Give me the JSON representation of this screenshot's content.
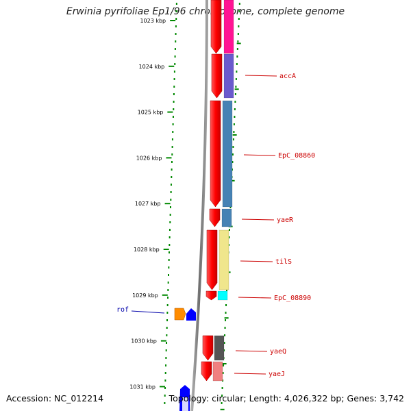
{
  "title": "Erwinia pyrifoliae Ep1/96 chromosome, complete genome",
  "footer": {
    "accession": "Accession: NC_012214",
    "topology": "Topology: circular; Length: 4,026,322 bp; Genes: 3,742"
  },
  "map": {
    "scale_unit": "kbp",
    "scale_ticks": [
      1023,
      1024,
      1025,
      1026,
      1027,
      1028,
      1029,
      1030,
      1031
    ],
    "gene_labels": [
      "accA",
      "EpC_08860",
      "yaeR",
      "tilS",
      "EpC_08890",
      "yaeQ",
      "yaeJ",
      "rof"
    ],
    "colors": {
      "backbone": "#888888",
      "cds_strand": "#ff0000",
      "reverse_strand": "#0000ff",
      "tick": "#008800",
      "label_forward": "#cc0000",
      "label_reverse": "#0000aa",
      "accA": "#6a5acd",
      "EpC_08860": "#4682b4",
      "yaeR": "#4682b4",
      "tilS": "#f0e68c",
      "EpC_08890": "#00ffff",
      "yaeQ": "#555555",
      "yaeJ": "#f08080",
      "rof": "#ff8c00",
      "top_feature": "#ff1493"
    }
  }
}
